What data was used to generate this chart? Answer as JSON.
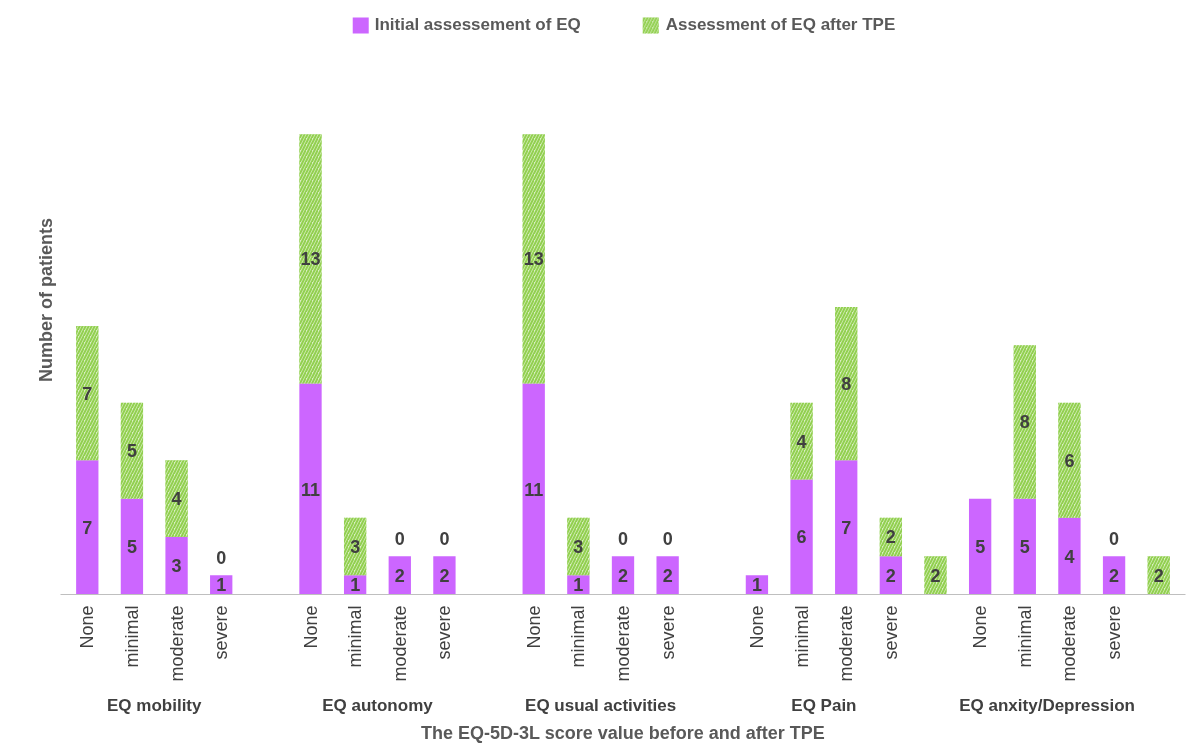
{
  "chart_data": {
    "type": "bar",
    "stacked": true,
    "data_labels": true,
    "legend": "top",
    "xlabel": "The EQ-5D-3L score value before and after TPE",
    "ylabel": "Number of patients",
    "categories": [
      "None",
      "minimal",
      "moderate",
      "severe",
      null,
      "None",
      "minimal",
      "moderate",
      "severe",
      null,
      "None",
      "minimal",
      "moderate",
      "severe",
      null,
      "None",
      "minimal",
      "moderate",
      "severe",
      null,
      "None",
      "minimal",
      "moderate",
      "severe",
      null
    ],
    "annotations": [
      "EQ mobility",
      "EQ autonomy",
      "EQ usual activities",
      "EQ Pain",
      "EQ anxity/Depression"
    ],
    "series": [
      {
        "name": "Initial assessement of EQ",
        "color": "#cc66ff",
        "values": [
          7,
          5,
          3,
          1,
          null,
          11,
          1,
          2,
          2,
          null,
          11,
          1,
          2,
          2,
          null,
          1,
          6,
          7,
          2,
          null,
          5,
          5,
          4,
          2,
          null
        ]
      },
      {
        "name": "Assessment of EQ after TPE",
        "color": "#92d050",
        "values": [
          7,
          5,
          4,
          0,
          null,
          13,
          3,
          0,
          0,
          null,
          13,
          3,
          0,
          0,
          null,
          null,
          4,
          8,
          2,
          2,
          null,
          8,
          6,
          0,
          2
        ]
      }
    ]
  }
}
